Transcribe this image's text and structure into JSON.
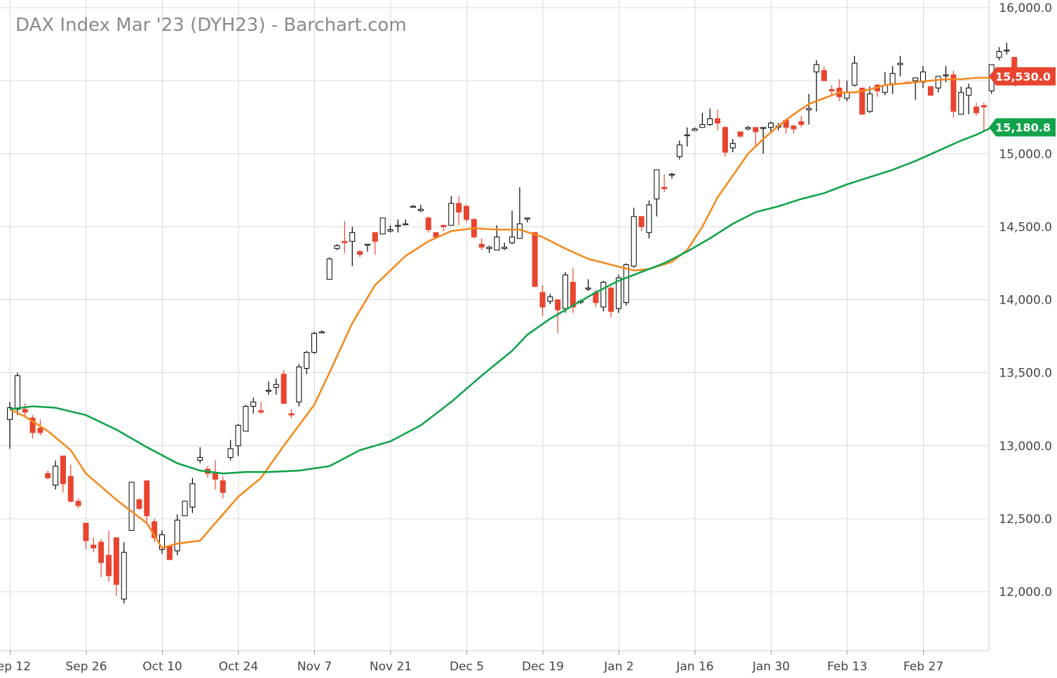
{
  "chart_data": {
    "type": "candlestick",
    "title": "DAX Index Mar '23 (DYH23) - Barchart.com",
    "ylim": [
      11650,
      16000
    ],
    "y_ticks": [
      "12,000.0",
      "12,500.0",
      "13,000.0",
      "13,500.0",
      "14,000.0",
      "14,500.0",
      "15,000.0",
      "15,500.0",
      "16,000.0"
    ],
    "y_tick_values": [
      12000,
      12500,
      13000,
      13500,
      14000,
      14500,
      15000,
      15500,
      16000
    ],
    "x_ticks": [
      "Sep 12",
      "Sep 26",
      "Oct 10",
      "Oct 24",
      "Nov 7",
      "Nov 21",
      "Dec 5",
      "Dec 19",
      "Jan 2",
      "Jan 16",
      "Jan 30",
      "Feb 13",
      "Feb 27"
    ],
    "x_tick_positions": [
      0,
      10,
      20,
      30,
      40,
      50,
      60,
      70,
      80,
      90,
      100,
      110,
      120
    ],
    "grid": true,
    "price_tags": [
      {
        "label": "15,530.0",
        "value": 15530,
        "color": "#e8442f"
      },
      {
        "label": "15,180.8",
        "value": 15180.8,
        "color": "#12a34a"
      }
    ],
    "colors": {
      "up": "#ffffff",
      "up_stroke": "#000000",
      "down": "#e8442f",
      "ma_short": "#f58a1f",
      "ma_long": "#12a34a"
    },
    "ohlc": [
      [
        13180,
        13300,
        12980,
        13260
      ],
      [
        13250,
        13500,
        13210,
        13480
      ],
      [
        13250,
        13290,
        13200,
        13230
      ],
      [
        13190,
        13210,
        13050,
        13090
      ],
      [
        13120,
        13180,
        13070,
        13090
      ],
      [
        12810,
        12830,
        12770,
        12780
      ],
      [
        12730,
        12900,
        12700,
        12860
      ],
      [
        12930,
        12930,
        12680,
        12740
      ],
      [
        12790,
        12870,
        12610,
        12620
      ],
      [
        12620,
        12640,
        12570,
        12590
      ],
      [
        12470,
        12470,
        12290,
        12350
      ],
      [
        12320,
        12370,
        12270,
        12300
      ],
      [
        12340,
        12360,
        12100,
        12200
      ],
      [
        12250,
        12420,
        12070,
        12110
      ],
      [
        12370,
        12370,
        11970,
        12050
      ],
      [
        11950,
        12340,
        11920,
        12270
      ],
      [
        12420,
        12750,
        12420,
        12750
      ],
      [
        12630,
        12640,
        12560,
        12570
      ],
      [
        12760,
        12760,
        12480,
        12520
      ],
      [
        12480,
        12500,
        12340,
        12370
      ],
      [
        12290,
        12420,
        12260,
        12390
      ],
      [
        12310,
        12310,
        12220,
        12220
      ],
      [
        12280,
        12530,
        12250,
        12490
      ],
      [
        12520,
        12620,
        12520,
        12620
      ],
      [
        12580,
        12780,
        12540,
        12740
      ],
      [
        12900,
        12990,
        12880,
        12920
      ],
      [
        12840,
        12860,
        12780,
        12810
      ],
      [
        12810,
        12900,
        12700,
        12770
      ],
      [
        12760,
        12790,
        12640,
        12680
      ],
      [
        12920,
        13040,
        12900,
        12980
      ],
      [
        13000,
        13150,
        12930,
        13140
      ],
      [
        13100,
        13280,
        13100,
        13270
      ],
      [
        13270,
        13330,
        13220,
        13300
      ],
      [
        13240,
        13300,
        13220,
        13230
      ],
      [
        13380,
        13440,
        13350,
        13380
      ],
      [
        13400,
        13460,
        13350,
        13420
      ],
      [
        13490,
        13520,
        13290,
        13290
      ],
      [
        13220,
        13250,
        13190,
        13210
      ],
      [
        13300,
        13560,
        13270,
        13540
      ],
      [
        13530,
        13650,
        13490,
        13640
      ],
      [
        13640,
        13780,
        13630,
        13770
      ],
      [
        13780,
        13790,
        13780,
        13780
      ],
      [
        14140,
        14290,
        14140,
        14280
      ],
      [
        14350,
        14380,
        14340,
        14370
      ],
      [
        14400,
        14540,
        14320,
        14390
      ],
      [
        14400,
        14500,
        14230,
        14460
      ],
      [
        14330,
        14340,
        14290,
        14310
      ],
      [
        14380,
        14380,
        14330,
        14380
      ],
      [
        14460,
        14460,
        14310,
        14400
      ],
      [
        14450,
        14560,
        14450,
        14560
      ],
      [
        14470,
        14510,
        14460,
        14480
      ],
      [
        14510,
        14550,
        14460,
        14510
      ],
      [
        14520,
        14550,
        14510,
        14520
      ],
      [
        14640,
        14650,
        14640,
        14640
      ],
      [
        14610,
        14650,
        14600,
        14620
      ],
      [
        14560,
        14570,
        14460,
        14480
      ],
      [
        14460,
        14460,
        14420,
        14430
      ],
      [
        14510,
        14510,
        14470,
        14500
      ],
      [
        14510,
        14710,
        14510,
        14660
      ],
      [
        14660,
        14710,
        14510,
        14600
      ],
      [
        14640,
        14650,
        14530,
        14550
      ],
      [
        14550,
        14560,
        14420,
        14430
      ],
      [
        14380,
        14420,
        14340,
        14360
      ],
      [
        14350,
        14370,
        14320,
        14360
      ],
      [
        14340,
        14510,
        14340,
        14430
      ],
      [
        14350,
        14390,
        14340,
        14360
      ],
      [
        14390,
        14610,
        14380,
        14430
      ],
      [
        14420,
        14770,
        14420,
        14520
      ],
      [
        14560,
        14560,
        14530,
        14560
      ],
      [
        14460,
        14460,
        14090,
        14090
      ],
      [
        14050,
        14100,
        13890,
        13950
      ],
      [
        13990,
        14040,
        13970,
        14020
      ],
      [
        14000,
        14000,
        13770,
        13930
      ],
      [
        13940,
        14190,
        13910,
        14170
      ],
      [
        14120,
        14220,
        13910,
        13950
      ],
      [
        13990,
        14000,
        13970,
        13990
      ],
      [
        14080,
        14140,
        14060,
        14080
      ],
      [
        14050,
        14070,
        13950,
        13980
      ],
      [
        13950,
        14130,
        13920,
        14120
      ],
      [
        14080,
        14090,
        13880,
        13920
      ],
      [
        13940,
        14170,
        13910,
        14150
      ],
      [
        13980,
        14250,
        13960,
        14240
      ],
      [
        14230,
        14630,
        14220,
        14570
      ],
      [
        14570,
        14570,
        14470,
        14500
      ],
      [
        14460,
        14680,
        14420,
        14650
      ],
      [
        14690,
        14890,
        14570,
        14890
      ],
      [
        14770,
        14860,
        14740,
        14760
      ],
      [
        14860,
        14870,
        14830,
        14860
      ],
      [
        14980,
        15090,
        14960,
        15060
      ],
      [
        15130,
        15180,
        15050,
        15130
      ],
      [
        15160,
        15180,
        15160,
        15170
      ],
      [
        15180,
        15280,
        15180,
        15200
      ],
      [
        15200,
        15310,
        15190,
        15240
      ],
      [
        15240,
        15300,
        15160,
        15210
      ],
      [
        15180,
        15190,
        14980,
        15010
      ],
      [
        15040,
        15100,
        15010,
        15070
      ],
      [
        15150,
        15150,
        15110,
        15120
      ],
      [
        15170,
        15190,
        15160,
        15180
      ],
      [
        15180,
        15180,
        15050,
        15150
      ],
      [
        15180,
        15180,
        15000,
        15180
      ],
      [
        15180,
        15220,
        15150,
        15210
      ],
      [
        15190,
        15210,
        15160,
        15190
      ],
      [
        15230,
        15240,
        15140,
        15180
      ],
      [
        15190,
        15200,
        15140,
        15170
      ],
      [
        15220,
        15260,
        15180,
        15200
      ],
      [
        15300,
        15410,
        15200,
        15310
      ],
      [
        15560,
        15640,
        15290,
        15610
      ],
      [
        15570,
        15600,
        15500,
        15500
      ],
      [
        15440,
        15470,
        15400,
        15430
      ],
      [
        15450,
        15510,
        15360,
        15390
      ],
      [
        15380,
        15500,
        15360,
        15420
      ],
      [
        15470,
        15670,
        15460,
        15620
      ],
      [
        15450,
        15450,
        15280,
        15270
      ],
      [
        15290,
        15460,
        15280,
        15410
      ],
      [
        15470,
        15480,
        15390,
        15430
      ],
      [
        15420,
        15560,
        15400,
        15470
      ],
      [
        15480,
        15600,
        15410,
        15550
      ],
      [
        15610,
        15670,
        15530,
        15620
      ],
      [
        15490,
        15490,
        15480,
        15480
      ],
      [
        15500,
        15520,
        15370,
        15520
      ],
      [
        15490,
        15600,
        15450,
        15560
      ],
      [
        15460,
        15460,
        15400,
        15400
      ],
      [
        15450,
        15520,
        15420,
        15530
      ],
      [
        15540,
        15600,
        15490,
        15540
      ],
      [
        15540,
        15570,
        15250,
        15290
      ],
      [
        15270,
        15460,
        15270,
        15420
      ],
      [
        15400,
        15480,
        15270,
        15450
      ],
      [
        15320,
        15350,
        15260,
        15280
      ],
      [
        15330,
        15350,
        15160,
        15320
      ],
      [
        15430,
        15600,
        15410,
        15610
      ],
      [
        15660,
        15730,
        15640,
        15700
      ],
      [
        15710,
        15760,
        15680,
        15710
      ],
      [
        15660,
        15660,
        15560,
        15590
      ]
    ],
    "series": [
      {
        "type": "line",
        "color": "#f58a1f",
        "points": [
          [
            0,
            13250
          ],
          [
            2,
            13200
          ],
          [
            5,
            13100
          ],
          [
            8,
            12970
          ],
          [
            10,
            12810
          ],
          [
            14,
            12630
          ],
          [
            16,
            12550
          ],
          [
            18,
            12470
          ],
          [
            20,
            12300
          ],
          [
            22,
            12330
          ],
          [
            25,
            12350
          ],
          [
            28,
            12530
          ],
          [
            30,
            12650
          ],
          [
            33,
            12780
          ],
          [
            36,
            13000
          ],
          [
            40,
            13280
          ],
          [
            42,
            13500
          ],
          [
            45,
            13840
          ],
          [
            48,
            14100
          ],
          [
            52,
            14300
          ],
          [
            55,
            14400
          ],
          [
            58,
            14470
          ],
          [
            61,
            14490
          ],
          [
            64,
            14480
          ],
          [
            67,
            14480
          ],
          [
            70,
            14430
          ],
          [
            73,
            14350
          ],
          [
            76,
            14280
          ],
          [
            79,
            14240
          ],
          [
            82,
            14200
          ],
          [
            84,
            14210
          ],
          [
            87,
            14260
          ],
          [
            89,
            14340
          ],
          [
            91,
            14500
          ],
          [
            93,
            14700
          ],
          [
            95,
            14850
          ],
          [
            97,
            15000
          ],
          [
            99,
            15100
          ],
          [
            101,
            15190
          ],
          [
            103,
            15270
          ],
          [
            105,
            15340
          ],
          [
            107,
            15380
          ],
          [
            109,
            15420
          ],
          [
            111,
            15420
          ],
          [
            113,
            15440
          ],
          [
            115,
            15470
          ],
          [
            117,
            15480
          ],
          [
            119,
            15490
          ],
          [
            121,
            15500
          ],
          [
            123,
            15510
          ],
          [
            125,
            15510
          ],
          [
            127,
            15520
          ],
          [
            129,
            15520
          ]
        ]
      },
      {
        "type": "line",
        "color": "#12a34a",
        "points": [
          [
            0,
            13250
          ],
          [
            3,
            13270
          ],
          [
            6,
            13260
          ],
          [
            10,
            13210
          ],
          [
            14,
            13110
          ],
          [
            18,
            12990
          ],
          [
            22,
            12880
          ],
          [
            25,
            12830
          ],
          [
            28,
            12810
          ],
          [
            31,
            12820
          ],
          [
            34,
            12820
          ],
          [
            38,
            12830
          ],
          [
            42,
            12860
          ],
          [
            46,
            12970
          ],
          [
            50,
            13030
          ],
          [
            54,
            13140
          ],
          [
            58,
            13300
          ],
          [
            62,
            13480
          ],
          [
            66,
            13650
          ],
          [
            68,
            13760
          ],
          [
            71,
            13870
          ],
          [
            74,
            13960
          ],
          [
            77,
            14050
          ],
          [
            80,
            14130
          ],
          [
            83,
            14190
          ],
          [
            86,
            14250
          ],
          [
            89,
            14330
          ],
          [
            92,
            14420
          ],
          [
            95,
            14520
          ],
          [
            98,
            14600
          ],
          [
            101,
            14640
          ],
          [
            104,
            14690
          ],
          [
            107,
            14730
          ],
          [
            110,
            14790
          ],
          [
            113,
            14840
          ],
          [
            116,
            14890
          ],
          [
            119,
            14950
          ],
          [
            122,
            15020
          ],
          [
            125,
            15090
          ],
          [
            127,
            15130
          ],
          [
            129,
            15180
          ]
        ]
      }
    ]
  }
}
